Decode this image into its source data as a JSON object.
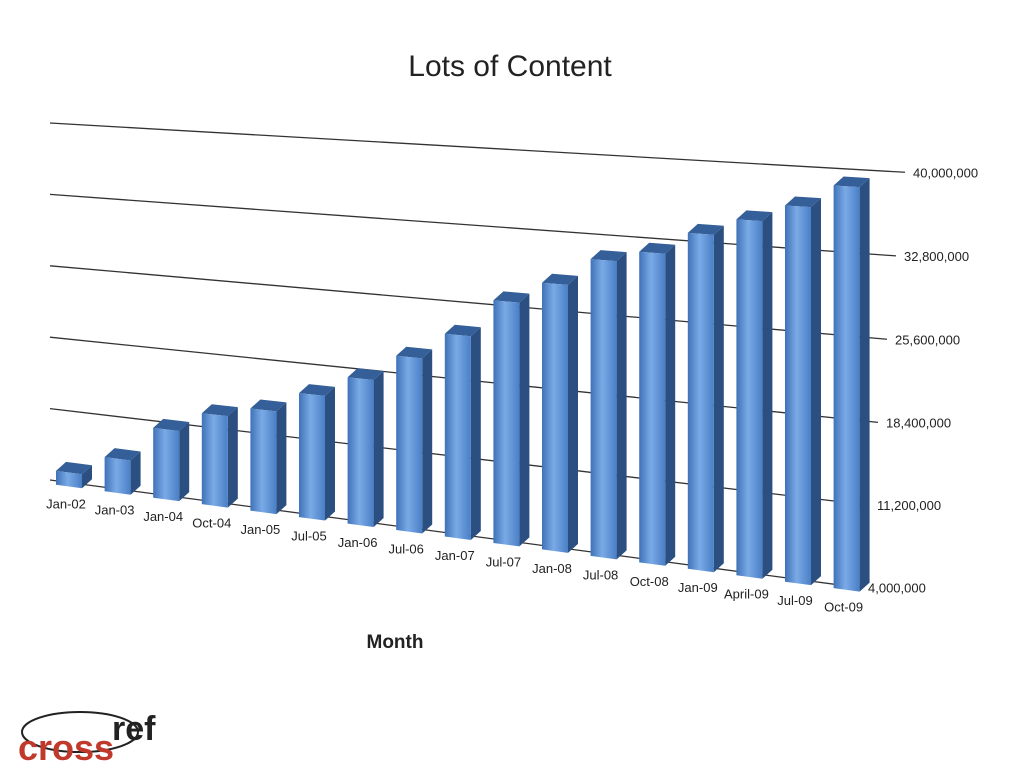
{
  "chart_data": {
    "type": "bar3d",
    "title": "Lots of Content",
    "x_label": "Month",
    "categories": [
      "Jan-02",
      "Jan-03",
      "Jan-04",
      "Oct-04",
      "Jan-05",
      "Jul-05",
      "Jan-06",
      "Jul-06",
      "Jan-07",
      "Jul-07",
      "Jan-08",
      "Jul-08",
      "Oct-08",
      "Jan-09",
      "April-09",
      "Jul-09",
      "Oct-09"
    ],
    "values": [
      5000000,
      7000000,
      10500000,
      12500000,
      13500000,
      15500000,
      17500000,
      20000000,
      22500000,
      26000000,
      28000000,
      30500000,
      31500000,
      33500000,
      35000000,
      36500000,
      38500000
    ],
    "color": "#5b8fd4",
    "ylim": [
      4000000,
      40000000
    ],
    "yticks": [
      {
        "value": 4000000,
        "label": "4,000,000"
      },
      {
        "value": 11200000,
        "label": "11,200,000"
      },
      {
        "value": 18400000,
        "label": "18,400,000"
      },
      {
        "value": 25600000,
        "label": "25,600,000"
      },
      {
        "value": 32800000,
        "label": "32,800,000"
      },
      {
        "value": 40000000,
        "label": "40,000,000"
      }
    ],
    "grid": true
  },
  "logo": [
    "cross",
    "ref"
  ]
}
